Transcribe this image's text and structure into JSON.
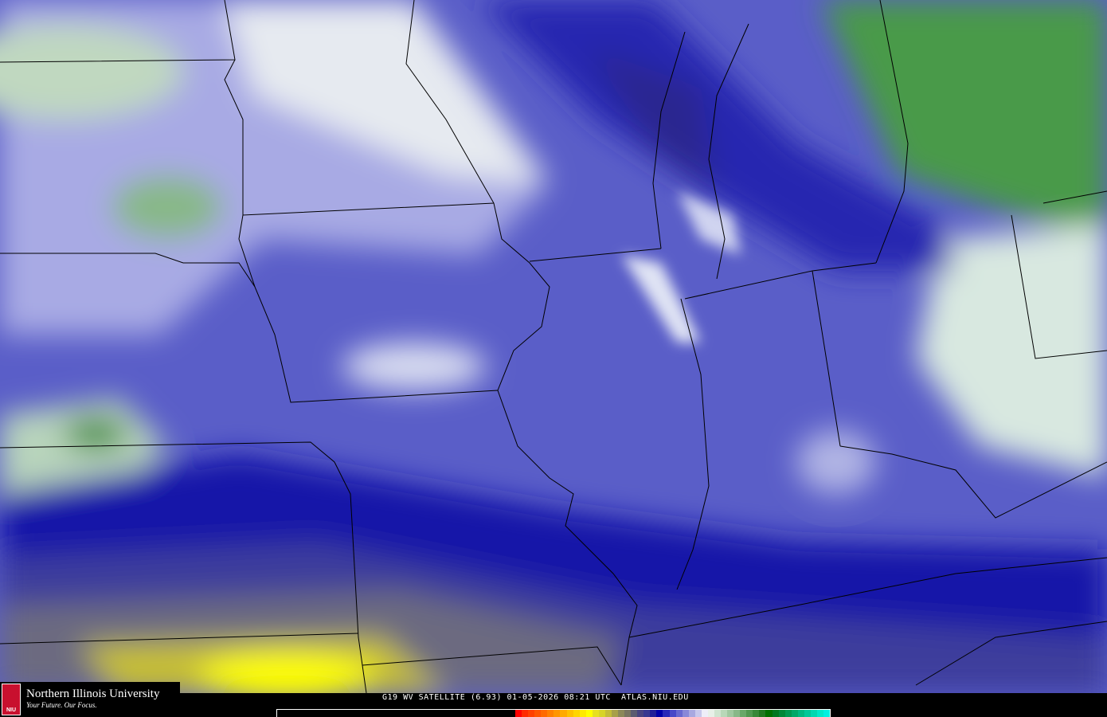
{
  "caption": "G19 WV SATELLITE (6.93) 01-05-2026 08:21 UTC  ATLAS.NIU.EDU",
  "logo": {
    "name": "Northern Illinois University",
    "tagline": "Your Future. Our Focus.",
    "seal_text": "NIU"
  },
  "colors": {
    "background": "#5a5ec8",
    "dark": "#1a1aa8",
    "yellow": "#f0e000",
    "green": "#3c8c3c",
    "white": "#e8eaf6"
  },
  "colorbar": [
    "#ff0000",
    "#ff2a00",
    "#ff4000",
    "#ff5500",
    "#ff6a00",
    "#ff8000",
    "#ff9500",
    "#ffaa00",
    "#ffc000",
    "#ffd500",
    "#ffea00",
    "#ffff00",
    "#e6e020",
    "#d8d428",
    "#c4bc38",
    "#a8a048",
    "#8c8858",
    "#787460",
    "#5c5c70",
    "#484480",
    "#383890",
    "#202098",
    "#0000a8",
    "#2828b8",
    "#4848c8",
    "#6868d0",
    "#8888d8",
    "#a8a8e0",
    "#c8c8ec",
    "#eeeef8",
    "#e8f0e8",
    "#d0e4d0",
    "#b8d8b8",
    "#a0c8a0",
    "#88b888",
    "#68a868",
    "#509850",
    "#388838",
    "#207820",
    "#007000",
    "#007820",
    "#008838",
    "#009850",
    "#00a868",
    "#00b880",
    "#00c898",
    "#00d8b0",
    "#00e8c8",
    "#00f0e0"
  ]
}
